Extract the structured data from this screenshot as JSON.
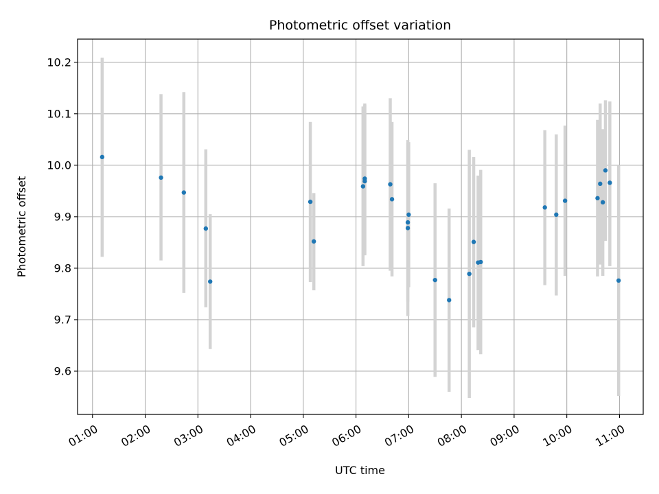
{
  "chart_data": {
    "type": "scatter",
    "title": "Photometric offset variation",
    "xlabel": "UTC time",
    "ylabel": "Photometric offset",
    "x_axis": "time",
    "xlim": [
      "00:43",
      "11:27"
    ],
    "ylim": [
      9.516,
      10.245
    ],
    "x_ticks": [
      "01:00",
      "02:00",
      "03:00",
      "04:00",
      "05:00",
      "06:00",
      "07:00",
      "08:00",
      "09:00",
      "10:00",
      "11:00"
    ],
    "y_ticks": [
      "9.6",
      "9.7",
      "9.8",
      "9.9",
      "10.0",
      "10.1",
      "10.2"
    ],
    "grid": true,
    "marker_color": "#1f77b4",
    "errorbar_color": "#d3d3d3",
    "series": [
      {
        "points": [
          {
            "time": "01:11",
            "y": 10.016,
            "lo": 9.822,
            "hi": 10.209
          },
          {
            "time": "02:18",
            "y": 9.976,
            "lo": 9.815,
            "hi": 10.138
          },
          {
            "time": "02:44",
            "y": 9.947,
            "lo": 9.752,
            "hi": 10.142
          },
          {
            "time": "03:09",
            "y": 9.877,
            "lo": 9.724,
            "hi": 10.031
          },
          {
            "time": "03:14",
            "y": 9.774,
            "lo": 9.643,
            "hi": 9.905
          },
          {
            "time": "05:08",
            "y": 9.929,
            "lo": 9.773,
            "hi": 10.084
          },
          {
            "time": "05:12",
            "y": 9.852,
            "lo": 9.757,
            "hi": 9.946
          },
          {
            "time": "06:08",
            "y": 9.959,
            "lo": 9.804,
            "hi": 10.114
          },
          {
            "time": "06:10",
            "y": 9.969,
            "lo": 9.825,
            "hi": 10.117
          },
          {
            "time": "06:10",
            "y": 9.974,
            "lo": 9.826,
            "hi": 10.12
          },
          {
            "time": "06:39",
            "y": 9.963,
            "lo": 9.795,
            "hi": 10.13
          },
          {
            "time": "06:41",
            "y": 9.934,
            "lo": 9.784,
            "hi": 10.084
          },
          {
            "time": "06:59",
            "y": 9.878,
            "lo": 9.707,
            "hi": 10.049
          },
          {
            "time": "06:59",
            "y": 9.889,
            "lo": 9.735,
            "hi": 10.043
          },
          {
            "time": "07:00",
            "y": 9.904,
            "lo": 9.763,
            "hi": 10.045
          },
          {
            "time": "07:30",
            "y": 9.777,
            "lo": 9.589,
            "hi": 9.965
          },
          {
            "time": "07:46",
            "y": 9.738,
            "lo": 9.56,
            "hi": 9.916
          },
          {
            "time": "08:09",
            "y": 9.789,
            "lo": 9.548,
            "hi": 10.03
          },
          {
            "time": "08:14",
            "y": 9.851,
            "lo": 9.685,
            "hi": 10.016
          },
          {
            "time": "08:19",
            "y": 9.811,
            "lo": 9.641,
            "hi": 9.98
          },
          {
            "time": "08:22",
            "y": 9.812,
            "lo": 9.633,
            "hi": 9.991
          },
          {
            "time": "09:35",
            "y": 9.918,
            "lo": 9.767,
            "hi": 10.068
          },
          {
            "time": "09:48",
            "y": 9.904,
            "lo": 9.747,
            "hi": 10.06
          },
          {
            "time": "09:58",
            "y": 9.931,
            "lo": 9.785,
            "hi": 10.077
          },
          {
            "time": "10:35",
            "y": 9.936,
            "lo": 9.784,
            "hi": 10.088
          },
          {
            "time": "10:38",
            "y": 9.964,
            "lo": 9.807,
            "hi": 10.12
          },
          {
            "time": "10:41",
            "y": 9.928,
            "lo": 9.785,
            "hi": 10.07
          },
          {
            "time": "10:44",
            "y": 9.99,
            "lo": 9.853,
            "hi": 10.126
          },
          {
            "time": "10:49",
            "y": 9.966,
            "lo": 9.804,
            "hi": 10.124
          },
          {
            "time": "10:59",
            "y": 9.776,
            "lo": 9.552,
            "hi": 10.0
          }
        ]
      }
    ]
  }
}
